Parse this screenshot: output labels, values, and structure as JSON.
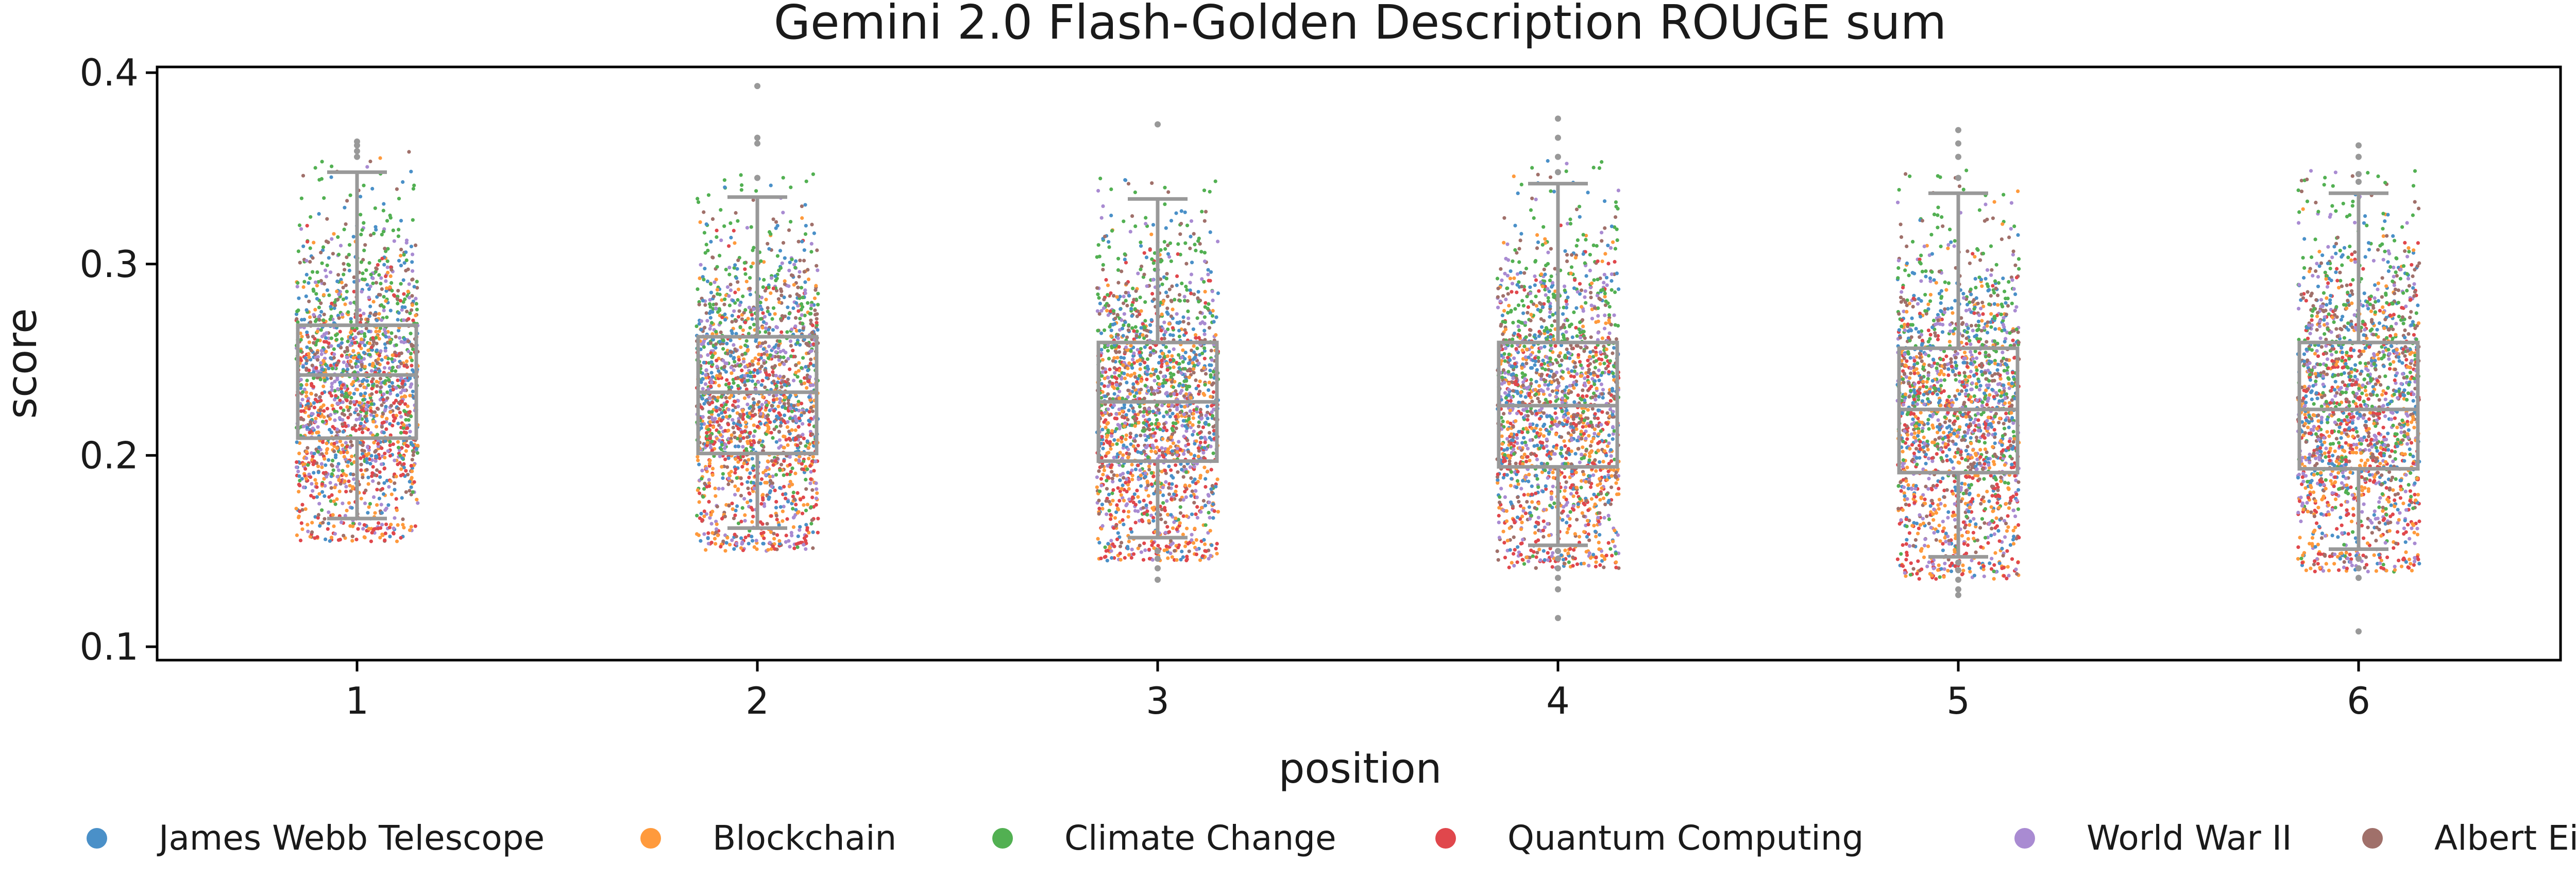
{
  "chart_data": {
    "type": "box+strip",
    "title": "Gemini 2.0 Flash-Golden Description ROUGE sum",
    "xlabel": "position",
    "ylabel": "score",
    "ylim": [
      0.093,
      0.403
    ],
    "yticks": [
      0.1,
      0.2,
      0.3,
      0.4
    ],
    "yticks_labels": [
      "0.1",
      "0.2",
      "0.3",
      "0.4"
    ],
    "categories": [
      "1",
      "2",
      "3",
      "4",
      "5",
      "6"
    ],
    "boxes": [
      {
        "position": "1",
        "whisker_low": 0.167,
        "q1": 0.209,
        "median": 0.242,
        "q3": 0.268,
        "whisker_high": 0.348,
        "outliers": [
          0.356,
          0.359,
          0.362,
          0.364
        ]
      },
      {
        "position": "2",
        "whisker_low": 0.162,
        "q1": 0.201,
        "median": 0.233,
        "q3": 0.262,
        "whisker_high": 0.335,
        "outliers": [
          0.345,
          0.363,
          0.366,
          0.393
        ]
      },
      {
        "position": "3",
        "whisker_low": 0.157,
        "q1": 0.197,
        "median": 0.228,
        "q3": 0.259,
        "whisker_high": 0.334,
        "outliers": [
          0.15,
          0.146,
          0.141,
          0.135,
          0.373
        ]
      },
      {
        "position": "4",
        "whisker_low": 0.153,
        "q1": 0.194,
        "median": 0.226,
        "q3": 0.259,
        "whisker_high": 0.342,
        "outliers": [
          0.15,
          0.146,
          0.141,
          0.136,
          0.13,
          0.115,
          0.348,
          0.356,
          0.366,
          0.376
        ]
      },
      {
        "position": "5",
        "whisker_low": 0.147,
        "q1": 0.191,
        "median": 0.224,
        "q3": 0.256,
        "whisker_high": 0.337,
        "outliers": [
          0.144,
          0.14,
          0.135,
          0.13,
          0.127,
          0.345,
          0.356,
          0.363,
          0.37
        ]
      },
      {
        "position": "6",
        "whisker_low": 0.151,
        "q1": 0.193,
        "median": 0.224,
        "q3": 0.259,
        "whisker_high": 0.337,
        "outliers": [
          0.146,
          0.141,
          0.136,
          0.108,
          0.343,
          0.347,
          0.356,
          0.362
        ]
      }
    ],
    "series": [
      {
        "name": "James Webb Telescope",
        "color": "#4a90c8",
        "center_shift": 0.002
      },
      {
        "name": "Blockchain",
        "color": "#ff9a3c",
        "center_shift": -0.018
      },
      {
        "name": "Climate Change",
        "color": "#52b052",
        "center_shift": 0.022
      },
      {
        "name": "Quantum Computing",
        "color": "#e0474c",
        "center_shift": -0.022
      },
      {
        "name": "World War II",
        "color": "#a98bd2",
        "center_shift": -0.006
      },
      {
        "name": "Albert Einstein",
        "color": "#a0706a",
        "center_shift": 0.006
      }
    ],
    "points_per_series_per_position": 300,
    "box_color": "#999999",
    "legend_position": "bottom"
  }
}
